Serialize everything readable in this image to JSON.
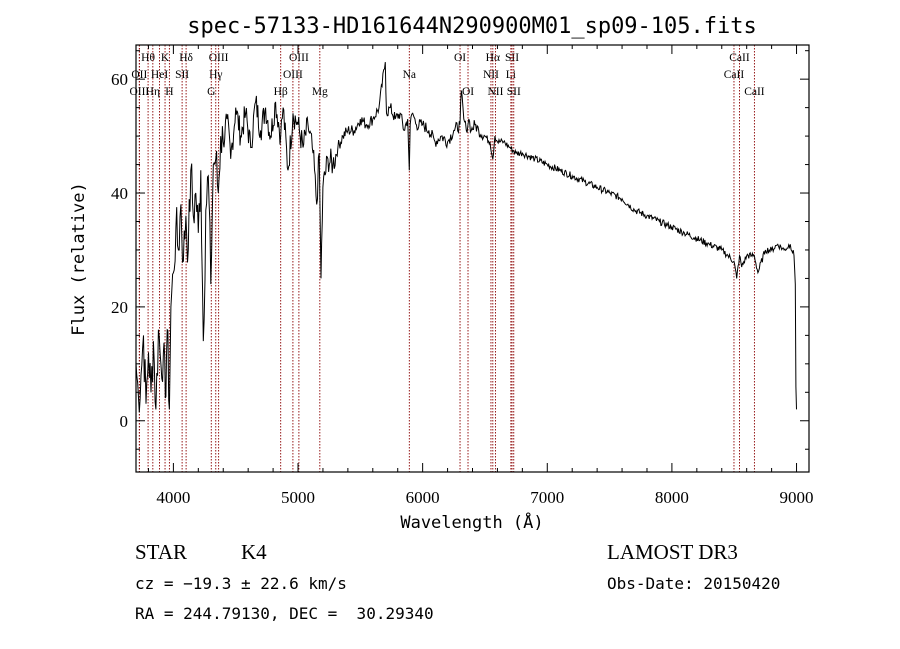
{
  "chart_data": {
    "type": "line",
    "title": "spec-57133-HD161644N290900M01_sp09-105.fits",
    "xlabel": "Wavelength (Å)",
    "ylabel": "Flux (relative)",
    "xlim": [
      3700,
      9100
    ],
    "ylim": [
      -9,
      66
    ],
    "xticks": [
      4000,
      5000,
      6000,
      7000,
      8000,
      9000
    ],
    "yticks": [
      0,
      20,
      40,
      60
    ],
    "series": [
      {
        "name": "spectrum",
        "x": [
          3700,
          3720,
          3740,
          3760,
          3780,
          3800,
          3820,
          3840,
          3860,
          3880,
          3900,
          3920,
          3935,
          3950,
          3968,
          3980,
          4000,
          4020,
          4040,
          4060,
          4080,
          4100,
          4120,
          4140,
          4160,
          4180,
          4200,
          4220,
          4240,
          4260,
          4280,
          4300,
          4320,
          4340,
          4360,
          4380,
          4400,
          4430,
          4460,
          4500,
          4540,
          4580,
          4620,
          4660,
          4700,
          4740,
          4780,
          4820,
          4861,
          4880,
          4920,
          4960,
          5000,
          5040,
          5080,
          5120,
          5150,
          5170,
          5184,
          5200,
          5240,
          5280,
          5320,
          5360,
          5400,
          5450,
          5500,
          5550,
          5600,
          5650,
          5700,
          5710,
          5740,
          5780,
          5820,
          5850,
          5880,
          5893,
          5900,
          5920,
          5950,
          6000,
          6050,
          6100,
          6150,
          6200,
          6250,
          6300,
          6310,
          6330,
          6350,
          6370,
          6390,
          6420,
          6450,
          6500,
          6540,
          6563,
          6580,
          6600,
          6650,
          6700,
          6750,
          6800,
          6900,
          7000,
          7100,
          7200,
          7300,
          7400,
          7500,
          7600,
          7700,
          7800,
          7900,
          8000,
          8100,
          8200,
          8300,
          8400,
          8450,
          8498,
          8520,
          8542,
          8560,
          8600,
          8640,
          8662,
          8690,
          8750,
          8800,
          8850,
          8900,
          8950,
          8980,
          8990,
          8995,
          9000
        ],
        "values": [
          10,
          4,
          8,
          15,
          3,
          12,
          5,
          14,
          2,
          16,
          10,
          12,
          4,
          16,
          2,
          20,
          26,
          34,
          30,
          38,
          28,
          36,
          30,
          44,
          36,
          40,
          33,
          44,
          14,
          37,
          43,
          24,
          45,
          46,
          40,
          50,
          49,
          53,
          46,
          55,
          50,
          54,
          48,
          56,
          51,
          55,
          50,
          56,
          50,
          55,
          44,
          54,
          52,
          48,
          52,
          47,
          38,
          47,
          25,
          41,
          46,
          45,
          48,
          50,
          51,
          51,
          53,
          52,
          53,
          55,
          63,
          54,
          55,
          53,
          54,
          51,
          53,
          44,
          52,
          54,
          52,
          52,
          51,
          49,
          50,
          49,
          51,
          52,
          58,
          53,
          51,
          53,
          51,
          52,
          51,
          50,
          49,
          46,
          50,
          49,
          49,
          48,
          47,
          47,
          46,
          45,
          44,
          43,
          42,
          41,
          40,
          39,
          37,
          36,
          35,
          34,
          33,
          32,
          31,
          30,
          29,
          28,
          25,
          29,
          27,
          29,
          29,
          29,
          26,
          30,
          30,
          31,
          30,
          31,
          29,
          24,
          6,
          2
        ]
      }
    ],
    "spectral_lines": [
      {
        "label": "Hθ",
        "wavelength": 3797,
        "row": 1
      },
      {
        "label": "OII",
        "wavelength": 3727,
        "row": 2
      },
      {
        "label": "OIII",
        "wavelength": 3727,
        "row": 3
      },
      {
        "label": "Hη",
        "wavelength": 3835,
        "row": 3
      },
      {
        "label": "K",
        "wavelength": 3933,
        "row": 1
      },
      {
        "label": "HeI",
        "wavelength": 3889,
        "row": 2
      },
      {
        "label": "H",
        "wavelength": 3968,
        "row": 3
      },
      {
        "label": "SII",
        "wavelength": 4070,
        "row": 2
      },
      {
        "label": "Hδ",
        "wavelength": 4102,
        "row": 1
      },
      {
        "label": "OIII",
        "wavelength": 4363,
        "row": 1
      },
      {
        "label": "Hγ",
        "wavelength": 4340,
        "row": 2
      },
      {
        "label": "G",
        "wavelength": 4304,
        "row": 3
      },
      {
        "label": "Hβ",
        "wavelength": 4861,
        "row": 3
      },
      {
        "label": "OIII",
        "wavelength": 5007,
        "row": 1
      },
      {
        "label": "OIII",
        "wavelength": 4959,
        "row": 2
      },
      {
        "label": "Mg",
        "wavelength": 5175,
        "row": 3
      },
      {
        "label": "Na",
        "wavelength": 5893,
        "row": 2
      },
      {
        "label": "OI",
        "wavelength": 6300,
        "row": 1
      },
      {
        "label": "OI",
        "wavelength": 6364,
        "row": 3
      },
      {
        "label": "Hα",
        "wavelength": 6563,
        "row": 1
      },
      {
        "label": "NII",
        "wavelength": 6548,
        "row": 2
      },
      {
        "label": "NII",
        "wavelength": 6584,
        "row": 3
      },
      {
        "label": "SII",
        "wavelength": 6717,
        "row": 1
      },
      {
        "label": "Li",
        "wavelength": 6708,
        "row": 2
      },
      {
        "label": "SII",
        "wavelength": 6731,
        "row": 3
      },
      {
        "label": "CaII",
        "wavelength": 8542,
        "row": 1
      },
      {
        "label": "CaII",
        "wavelength": 8498,
        "row": 2
      },
      {
        "label": "CaII",
        "wavelength": 8662,
        "row": 3
      }
    ]
  },
  "info": {
    "classification": "STAR",
    "subclass": "K4",
    "survey": "LAMOST DR3",
    "redshift_line": "cz = −19.3 ± 22.6 km/s",
    "obs_date_line": "Obs-Date: 20150420",
    "coords_line": "RA = 244.79130, DEC =  30.29340"
  },
  "colors": {
    "spectrum": "#000000",
    "line_markers": "#8b0000",
    "axes": "#000000",
    "background": "#ffffff"
  }
}
